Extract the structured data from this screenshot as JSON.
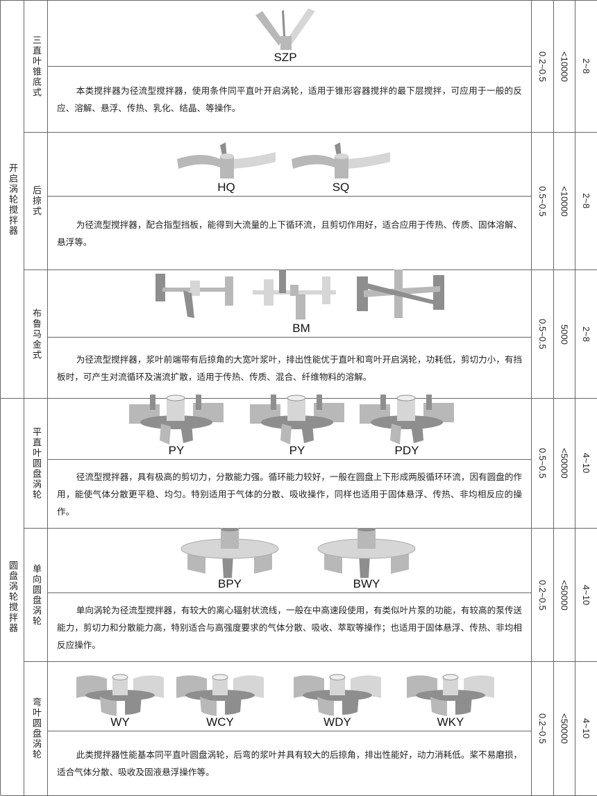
{
  "groups": [
    {
      "label": "开启涡轮搅拌器",
      "rows": [
        {
          "type": "三直叶锥底式",
          "items": [
            {
              "name": "SZP",
              "kind": "v"
            }
          ],
          "desc": "本类搅拌器为径流型搅拌器，使用条件同平直叶开启涡轮，适用于锥形容器搅拌的最下层搅拌，可应用于一般的反应、溶解、悬浮、传热、乳化、结晶、等操作。",
          "ratio": "0.2~0.5",
          "viscosity": "<10000",
          "speed": "2~8"
        },
        {
          "type": "后掠式",
          "items": [
            {
              "name": "HQ",
              "kind": "curved"
            },
            {
              "name": "SQ",
              "kind": "curved"
            }
          ],
          "desc": "为径流型搅拌器，配合指型挡板，能得到大流量的上下循环流，且剪切作用好，适合应用于传热、传质、固体溶解、悬浮等。",
          "ratio": "0.5~0.5",
          "viscosity": "<10000",
          "speed": "2~8"
        },
        {
          "type": "布鲁马金式",
          "items": [
            {
              "name": "BM",
              "kind": "bm"
            }
          ],
          "desc": "为径流型搅拌器，浆叶前端带有后掠角的大宽叶浆叶，排出性能优于直叶和弯叶开启涡轮，功耗低，剪切力小，有挡板时，可产生对流循环及湍流扩散，适用于传热、传质、混合、纤维物料的溶解。",
          "ratio": "0.5~0.5",
          "viscosity": "5000",
          "speed": "2~8"
        }
      ]
    },
    {
      "label": "圆盘涡轮搅拌器",
      "rows": [
        {
          "type": "平直叶圆盘涡轮",
          "items": [
            {
              "name": "PY",
              "kind": "flat"
            },
            {
              "name": "PY",
              "kind": "flat"
            },
            {
              "name": "PDY",
              "kind": "flat"
            }
          ],
          "desc": "径流型搅拌器，具有极高的剪切力，分散能力强。循环能力较好，一般在圆盘上下形成两股循环环流，因有圆盘的作用，能使气体分散更平稳、均匀。特别适用于气体的分散、吸收操作，同样也适用于固体悬浮、传热、非均相反应的操作。",
          "ratio": "0.5~0.5",
          "viscosity": "<50000",
          "speed": "4~10"
        },
        {
          "type": "单向圆盘涡轮",
          "items": [
            {
              "name": "BPY",
              "kind": "pump"
            },
            {
              "name": "BWY",
              "kind": "pump"
            }
          ],
          "desc": "单向涡轮为径流型搅拌器，有较大的离心辐射状流线，一般在中高速段使用，有类似叶片泵的功能，有较高的泵传送能力，剪切力和分散能力高，特别适合与高强度要求的气体分散、吸收、萃取等操作；也适用于固体悬浮、传热、非均相反应操作。",
          "ratio": "0.2~0.5",
          "viscosity": "<50000",
          "speed": "4~10"
        },
        {
          "type": "弯叶圆盘涡轮",
          "items": [
            {
              "name": "WY",
              "kind": "wdisc"
            },
            {
              "name": "WCY",
              "kind": "wdisc"
            },
            {
              "name": "WDY",
              "kind": "wdisc"
            },
            {
              "name": "WKY",
              "kind": "wdisc"
            }
          ],
          "desc": "此类搅拌器性能基本同平直叶圆盘涡轮，后弯的浆叶并具有较大的后掠角，排出性能好，动力消耗低。桨不易磨损，适合气体分散、吸收及固液悬浮操作等。",
          "ratio": "0.2~0.5",
          "viscosity": "<50000",
          "speed": "4~10"
        }
      ]
    }
  ]
}
